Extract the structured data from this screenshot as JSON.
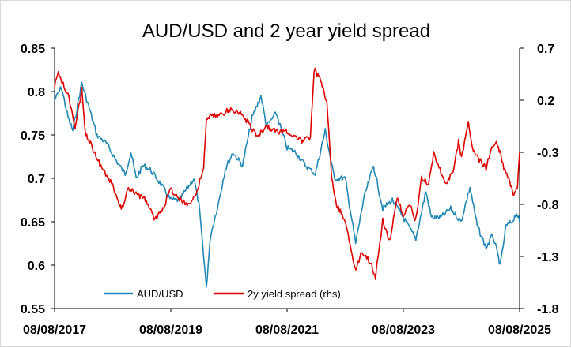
{
  "chart_data": {
    "type": "line",
    "title": "AUD/USD and 2 year yield spread",
    "xlabel": "",
    "ylabel": "",
    "x_ticks": [
      "08/08/2017",
      "08/08/2019",
      "08/08/2021",
      "08/08/2023",
      "08/08/2025"
    ],
    "x_range": [
      "2017-08-08",
      "2025-08-08"
    ],
    "y_left": {
      "ylim": [
        0.55,
        0.85
      ],
      "ticks": [
        "0.55",
        "0.6",
        "0.65",
        "0.7",
        "0.75",
        "0.8",
        "0.85"
      ]
    },
    "y_right": {
      "ylim": [
        -1.8,
        0.7
      ],
      "ticks": [
        "-1.8",
        "-1.3",
        "-0.8",
        "-0.3",
        "0.2",
        "0.7"
      ]
    },
    "grid": false,
    "legend_position": "bottom-inside",
    "series": [
      {
        "name": "AUD/USD",
        "axis": "left",
        "color": "#1f88b4",
        "points": [
          [
            "2017-08-08",
            0.79
          ],
          [
            "2017-09-20",
            0.805
          ],
          [
            "2017-11-01",
            0.77
          ],
          [
            "2017-12-01",
            0.755
          ],
          [
            "2018-01-26",
            0.81
          ],
          [
            "2018-03-15",
            0.78
          ],
          [
            "2018-05-01",
            0.75
          ],
          [
            "2018-07-01",
            0.74
          ],
          [
            "2018-09-01",
            0.72
          ],
          [
            "2018-10-26",
            0.705
          ],
          [
            "2018-12-01",
            0.73
          ],
          [
            "2019-01-03",
            0.7
          ],
          [
            "2019-02-15",
            0.715
          ],
          [
            "2019-04-01",
            0.71
          ],
          [
            "2019-06-01",
            0.695
          ],
          [
            "2019-08-08",
            0.675
          ],
          [
            "2019-10-01",
            0.675
          ],
          [
            "2019-12-31",
            0.7
          ],
          [
            "2020-02-01",
            0.67
          ],
          [
            "2020-03-19",
            0.575
          ],
          [
            "2020-04-15",
            0.635
          ],
          [
            "2020-06-01",
            0.67
          ],
          [
            "2020-07-15",
            0.71
          ],
          [
            "2020-09-01",
            0.73
          ],
          [
            "2020-11-01",
            0.715
          ],
          [
            "2021-01-01",
            0.77
          ],
          [
            "2021-02-25",
            0.795
          ],
          [
            "2021-04-01",
            0.76
          ],
          [
            "2021-06-01",
            0.775
          ],
          [
            "2021-08-08",
            0.735
          ],
          [
            "2021-10-01",
            0.73
          ],
          [
            "2021-12-01",
            0.715
          ],
          [
            "2022-02-01",
            0.705
          ],
          [
            "2022-04-05",
            0.755
          ],
          [
            "2022-06-01",
            0.7
          ],
          [
            "2022-08-08",
            0.7
          ],
          [
            "2022-10-13",
            0.625
          ],
          [
            "2022-12-01",
            0.675
          ],
          [
            "2023-02-02",
            0.715
          ],
          [
            "2023-04-01",
            0.665
          ],
          [
            "2023-06-01",
            0.675
          ],
          [
            "2023-08-08",
            0.655
          ],
          [
            "2023-10-26",
            0.63
          ],
          [
            "2023-12-28",
            0.685
          ],
          [
            "2024-02-01",
            0.655
          ],
          [
            "2024-04-01",
            0.655
          ],
          [
            "2024-06-01",
            0.665
          ],
          [
            "2024-08-05",
            0.65
          ],
          [
            "2024-09-30",
            0.69
          ],
          [
            "2024-11-15",
            0.645
          ],
          [
            "2025-01-10",
            0.62
          ],
          [
            "2025-02-20",
            0.635
          ],
          [
            "2025-04-09",
            0.6
          ],
          [
            "2025-05-15",
            0.645
          ],
          [
            "2025-06-20",
            0.65
          ],
          [
            "2025-07-20",
            0.66
          ],
          [
            "2025-08-08",
            0.65
          ]
        ]
      },
      {
        "name": "2y yield spread (rhs)",
        "axis": "right",
        "color": "#e00000",
        "points": [
          [
            "2017-08-08",
            0.33
          ],
          [
            "2017-09-01",
            0.47
          ],
          [
            "2017-10-01",
            0.35
          ],
          [
            "2017-11-01",
            0.25
          ],
          [
            "2017-12-15",
            -0.05
          ],
          [
            "2018-01-26",
            0.3
          ],
          [
            "2018-02-15",
            -0.1
          ],
          [
            "2018-04-01",
            -0.25
          ],
          [
            "2018-06-01",
            -0.45
          ],
          [
            "2018-08-01",
            -0.6
          ],
          [
            "2018-10-01",
            -0.85
          ],
          [
            "2018-11-15",
            -0.65
          ],
          [
            "2019-01-03",
            -0.7
          ],
          [
            "2019-03-01",
            -0.75
          ],
          [
            "2019-05-01",
            -0.95
          ],
          [
            "2019-07-01",
            -0.8
          ],
          [
            "2019-08-08",
            -0.65
          ],
          [
            "2019-10-01",
            -0.75
          ],
          [
            "2019-12-01",
            -0.8
          ],
          [
            "2020-01-15",
            -0.7
          ],
          [
            "2020-03-01",
            -0.45
          ],
          [
            "2020-03-19",
            0.0
          ],
          [
            "2020-04-15",
            0.05
          ],
          [
            "2020-06-01",
            0.05
          ],
          [
            "2020-08-01",
            0.1
          ],
          [
            "2020-10-01",
            0.1
          ],
          [
            "2020-12-01",
            0.0
          ],
          [
            "2021-02-01",
            -0.15
          ],
          [
            "2021-04-01",
            -0.05
          ],
          [
            "2021-06-01",
            -0.1
          ],
          [
            "2021-08-08",
            -0.1
          ],
          [
            "2021-10-01",
            -0.15
          ],
          [
            "2021-11-15",
            -0.2
          ],
          [
            "2022-01-01",
            -0.15
          ],
          [
            "2022-01-25",
            0.5
          ],
          [
            "2022-03-01",
            0.4
          ],
          [
            "2022-04-15",
            0.2
          ],
          [
            "2022-05-15",
            -0.55
          ],
          [
            "2022-06-15",
            -0.8
          ],
          [
            "2022-08-08",
            -0.95
          ],
          [
            "2022-09-15",
            -1.25
          ],
          [
            "2022-10-15",
            -1.45
          ],
          [
            "2022-11-15",
            -1.25
          ],
          [
            "2023-01-15",
            -1.35
          ],
          [
            "2023-02-15",
            -1.5
          ],
          [
            "2023-04-01",
            -0.95
          ],
          [
            "2023-05-15",
            -1.15
          ],
          [
            "2023-07-01",
            -0.75
          ],
          [
            "2023-08-08",
            -0.9
          ],
          [
            "2023-09-15",
            -0.8
          ],
          [
            "2023-10-26",
            -0.95
          ],
          [
            "2023-12-01",
            -0.55
          ],
          [
            "2024-01-15",
            -0.6
          ],
          [
            "2024-02-15",
            -0.3
          ],
          [
            "2024-03-20",
            -0.45
          ],
          [
            "2024-05-01",
            -0.6
          ],
          [
            "2024-06-15",
            -0.5
          ],
          [
            "2024-07-20",
            -0.2
          ],
          [
            "2024-08-08",
            -0.35
          ],
          [
            "2024-09-20",
            0.0
          ],
          [
            "2024-10-15",
            -0.25
          ],
          [
            "2024-11-15",
            -0.35
          ],
          [
            "2025-01-10",
            -0.45
          ],
          [
            "2025-02-15",
            -0.25
          ],
          [
            "2025-03-15",
            -0.2
          ],
          [
            "2025-04-09",
            -0.3
          ],
          [
            "2025-05-01",
            -0.45
          ],
          [
            "2025-06-01",
            -0.55
          ],
          [
            "2025-07-01",
            -0.7
          ],
          [
            "2025-07-25",
            -0.65
          ],
          [
            "2025-08-08",
            -0.3
          ]
        ]
      }
    ]
  }
}
